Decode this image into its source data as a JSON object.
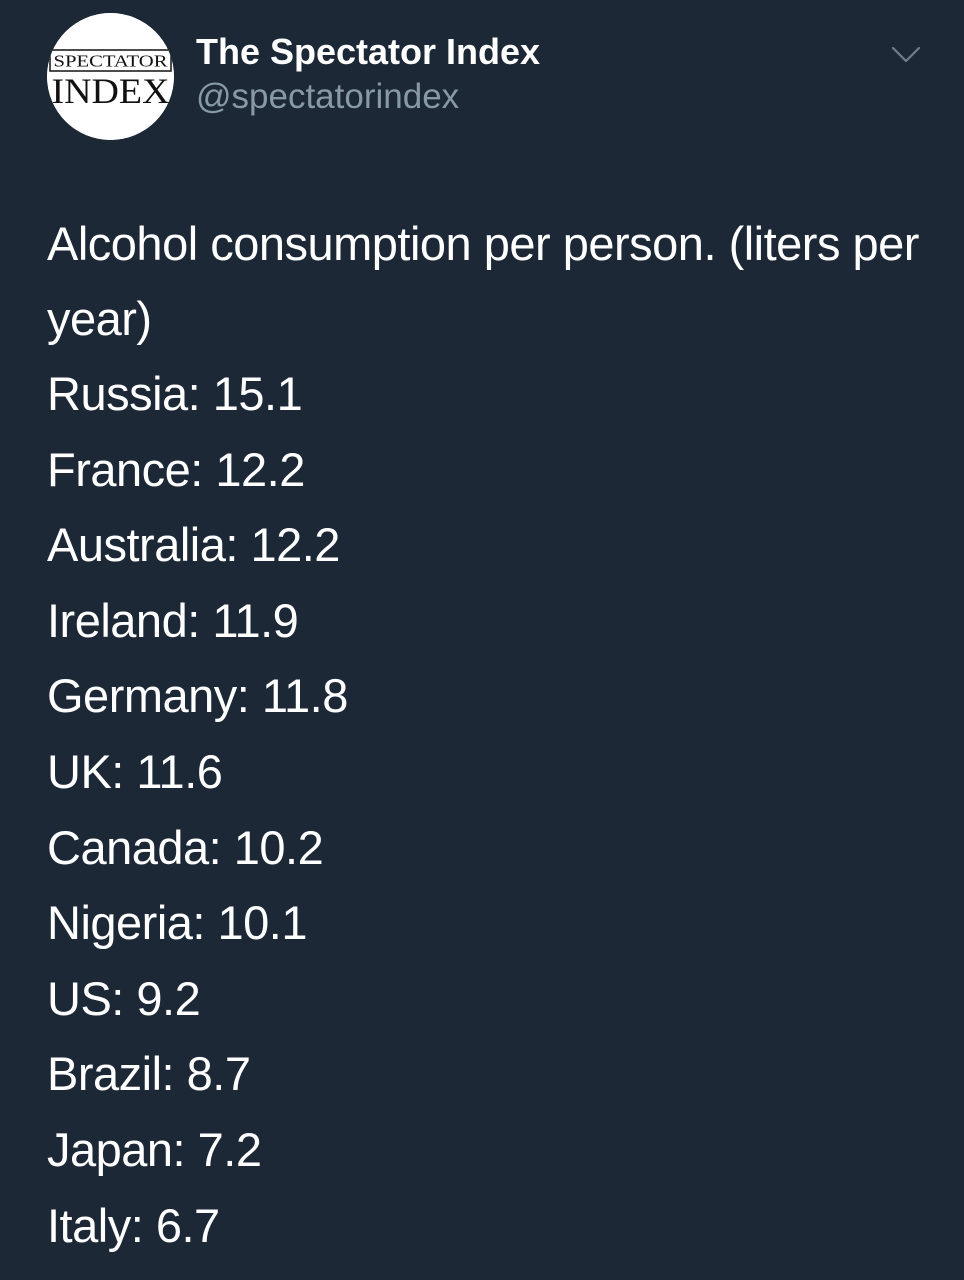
{
  "author": {
    "display_name": "The Spectator Index",
    "handle": "@spectatorindex",
    "avatar_text_top": "SPECTATOR",
    "avatar_text_bottom": "INDEX"
  },
  "tweet": {
    "headline": "Alcohol consumption per person. (liters per year)",
    "stats": [
      "Russia: 15.1",
      "France: 12.2",
      "Australia: 12.2",
      "Ireland: 11.9",
      "Germany: 11.8",
      "UK: 11.6",
      "Canada: 10.2",
      "Nigeria: 10.1",
      "US: 9.2",
      "Brazil: 8.7",
      "Japan: 7.2",
      "Italy: 6.7"
    ]
  },
  "icons": {
    "menu": "chevron-down-icon",
    "avatar": "spectator-index-logo"
  },
  "colors": {
    "background": "#1c2836",
    "text": "#ffffff",
    "secondary_text": "#8899a6"
  }
}
